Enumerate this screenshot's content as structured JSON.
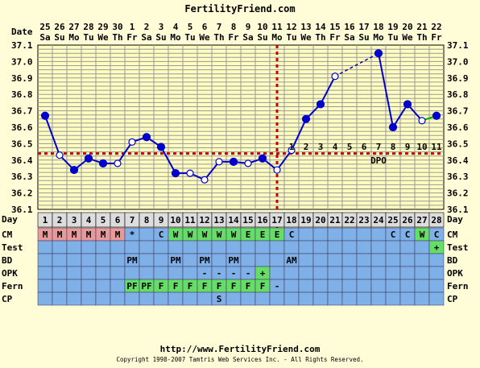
{
  "header": {
    "site": "FertilityFriend.com",
    "date_label": "Date"
  },
  "footer": {
    "url": "http://www.FertilityFriend.com",
    "copyright": "Copyright 1998-2007 Tamtris Web Services Inc. - All Rights Reserved."
  },
  "chart_data": {
    "type": "line",
    "title": "FertilityFriend.com",
    "ylabel": "",
    "xlabel": "Day",
    "ylim": [
      36.1,
      37.1
    ],
    "grid": true,
    "dates": [
      "25",
      "26",
      "27",
      "28",
      "29",
      "30",
      "1",
      "2",
      "3",
      "4",
      "5",
      "6",
      "7",
      "8",
      "9",
      "10",
      "11",
      "12",
      "13",
      "14",
      "15",
      "16",
      "17",
      "18",
      "19",
      "20",
      "21",
      "22"
    ],
    "weekdays": [
      "Sa",
      "Su",
      "Mo",
      "Tu",
      "We",
      "Th",
      "Fr",
      "Sa",
      "Su",
      "Mo",
      "Tu",
      "We",
      "Th",
      "Fr",
      "Sa",
      "Su",
      "Mo",
      "Tu",
      "We",
      "Th",
      "Fr",
      "Sa",
      "Su",
      "Mo",
      "Tu",
      "We",
      "Th",
      "Fr"
    ],
    "days": [
      1,
      2,
      3,
      4,
      5,
      6,
      7,
      8,
      9,
      10,
      11,
      12,
      13,
      14,
      15,
      16,
      17,
      18,
      19,
      20,
      21,
      22,
      23,
      24,
      25,
      26,
      27,
      28
    ],
    "y_ticks": [
      "36.1",
      "36.2",
      "36.3",
      "36.4",
      "36.5",
      "36.6",
      "36.7",
      "36.8",
      "36.9",
      "37.0",
      "37.1"
    ],
    "temperatures": [
      36.67,
      36.43,
      36.34,
      36.41,
      36.38,
      36.38,
      36.51,
      36.54,
      36.48,
      36.32,
      36.32,
      36.28,
      36.39,
      36.39,
      36.38,
      36.41,
      36.34,
      36.46,
      36.65,
      36.74,
      36.91,
      null,
      null,
      37.05,
      36.6,
      36.74,
      36.64,
      36.67
    ],
    "point_style": [
      "filled",
      "open",
      "filled",
      "filled",
      "filled",
      "open",
      "open",
      "filled",
      "filled",
      "filled",
      "open",
      "open",
      "open",
      "filled",
      "open",
      "filled",
      "open",
      "open",
      "filled",
      "filled",
      "open",
      null,
      null,
      "filled",
      "filled",
      "filled",
      "open",
      "filled"
    ],
    "coverline": 36.44,
    "ovulation_day": 17,
    "dpo_labels": [
      "1",
      "2",
      "3",
      "4",
      "5",
      "6",
      "7",
      "8",
      "9",
      "10",
      "11"
    ],
    "dpo_start_day": 18,
    "dpo_text": "DPO",
    "rows": [
      {
        "name": "CM",
        "values": [
          "M",
          "M",
          "M",
          "M",
          "M",
          "M",
          "*",
          "",
          "C",
          "W",
          "W",
          "W",
          "W",
          "W",
          "E",
          "E",
          "E",
          "C",
          "",
          "",
          "",
          "",
          "",
          "",
          "C",
          "C",
          "W",
          "C"
        ]
      },
      {
        "name": "Test",
        "values": [
          "",
          "",
          "",
          "",
          "",
          "",
          "",
          "",
          "",
          "",
          "",
          "",
          "",
          "",
          "",
          "",
          "",
          "",
          "",
          "",
          "",
          "",
          "",
          "",
          "",
          "",
          "",
          "+"
        ]
      },
      {
        "name": "BD",
        "values": [
          "",
          "",
          "",
          "",
          "",
          "",
          "PM",
          "",
          "",
          "PM",
          "",
          "PM",
          "",
          "PM",
          "",
          "",
          "",
          "AM",
          "",
          "",
          "",
          "",
          "",
          "",
          "",
          "",
          "",
          ""
        ]
      },
      {
        "name": "OPK",
        "values": [
          "",
          "",
          "",
          "",
          "",
          "",
          "",
          "",
          "",
          "",
          "",
          "-",
          "-",
          "-",
          "-",
          "+",
          "",
          "",
          "",
          "",
          "",
          "",
          "",
          "",
          "",
          "",
          "",
          ""
        ]
      },
      {
        "name": "Fern",
        "values": [
          "",
          "",
          "",
          "",
          "",
          "",
          "PF",
          "PF",
          "F",
          "F",
          "F",
          "F",
          "F",
          "F",
          "F",
          "F",
          "-",
          "",
          "",
          "",
          "",
          "",
          "",
          "",
          "",
          "",
          "",
          ""
        ]
      },
      {
        "name": "CP",
        "values": [
          "",
          "",
          "",
          "",
          "",
          "",
          "",
          "",
          "",
          "",
          "",
          "",
          "S",
          "",
          "",
          "",
          "",
          "",
          "",
          "",
          "",
          "",
          "",
          "",
          "",
          "",
          "",
          ""
        ]
      }
    ],
    "colors": {
      "background": "#fffdd8",
      "plot_background": "#fffdc0",
      "grid": "#999999",
      "line": "#0000cc",
      "coverline": "#cc0000",
      "cell_blue": "#80b0e8",
      "cell_menses": "#e89a9a",
      "cell_green": "#66dd66",
      "cell_day": "#dddddd"
    }
  }
}
